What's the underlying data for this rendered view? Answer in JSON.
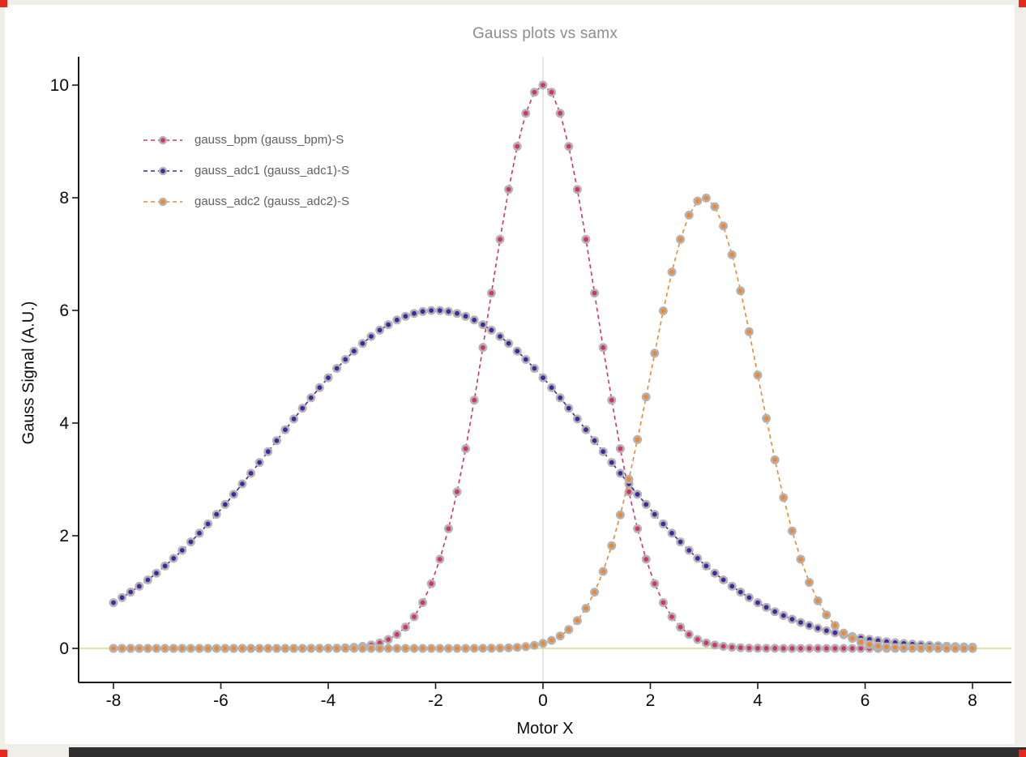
{
  "window": {
    "background": "#efeee8",
    "canvas": "#ffffff",
    "bottom_bar_color": "#2f2f2f",
    "corner_marker_color": "#e8281e"
  },
  "chart_data": {
    "type": "line",
    "title": "Gauss plots vs samx",
    "xlabel": "Motor X",
    "ylabel": "Gauss Signal (A.U.)",
    "x_ticks": [
      -8,
      -6,
      -4,
      -2,
      0,
      2,
      4,
      6,
      8
    ],
    "y_ticks": [
      0,
      2,
      4,
      6,
      8,
      10
    ],
    "xlim": [
      -8.65,
      8.75
    ],
    "ylim": [
      -0.6,
      10.55
    ],
    "grid": false,
    "legend_position": "top-left",
    "line_style": "dashed",
    "marker": "circle-gray-ring",
    "marker_ring_color": "#b3b3b3",
    "title_color": "#8d8d8d",
    "axis_color": "#1a1a1a",
    "reference_lines": [
      {
        "orientation": "vertical",
        "x": 0,
        "color": "#cfcfcf"
      },
      {
        "orientation": "horizontal",
        "y": 0,
        "color": "#d9d98c"
      }
    ],
    "x_sampled": [
      -8,
      -7.5,
      -7,
      -6.5,
      -6,
      -5.5,
      -5,
      -4.5,
      -4,
      -3.5,
      -3,
      -2.5,
      -2,
      -1.5,
      -1,
      -0.5,
      0,
      0.5,
      1,
      1.5,
      2,
      2.5,
      3,
      3.5,
      4,
      4.5,
      5,
      5.5,
      6,
      6.5,
      7,
      7.5,
      8
    ],
    "series": [
      {
        "name": "gauss_bpm (gauss_bpm)-S",
        "color": "#d23369",
        "gaussian": {
          "amplitude": 10,
          "center": 0,
          "sigma": 1
        },
        "x_start": -8,
        "x_end": 8,
        "n_points": 101,
        "y_sampled": [
          0,
          0,
          0,
          0,
          0,
          0,
          0,
          0,
          0.003,
          0.022,
          0.111,
          0.439,
          1.353,
          3.247,
          6.065,
          8.825,
          10,
          8.825,
          6.065,
          3.247,
          1.353,
          0.439,
          0.111,
          0.022,
          0.003,
          0,
          0,
          0,
          0,
          0,
          0,
          0,
          0
        ]
      },
      {
        "name": "gauss_adc1 (gauss_adc1)-S",
        "color": "#43279e",
        "gaussian": {
          "amplitude": 6,
          "center": -2,
          "sigma": 3
        },
        "x_start": -8,
        "x_end": 8,
        "n_points": 101,
        "y_sampled": [
          0.812,
          1.118,
          1.497,
          1.948,
          2.467,
          3.038,
          3.639,
          4.24,
          4.804,
          5.295,
          5.676,
          5.917,
          6,
          5.917,
          5.676,
          5.295,
          4.804,
          4.24,
          3.639,
          3.038,
          2.467,
          1.948,
          1.497,
          1.118,
          0.812,
          0.574,
          0.394,
          0.264,
          0.171,
          0.108,
          0.067,
          0.04,
          0.023
        ]
      },
      {
        "name": "gauss_adc2 (gauss_adc2)-S",
        "color": "#ee8833",
        "gaussian": {
          "amplitude": 8,
          "center": 3,
          "sigma": 1
        },
        "x_start": -8,
        "x_end": 8,
        "n_points": 101,
        "y_sampled": [
          0,
          0,
          0,
          0,
          0,
          0,
          0,
          0,
          0,
          0,
          0,
          0,
          0,
          0,
          0.003,
          0.018,
          0.089,
          0.351,
          1.083,
          2.597,
          4.852,
          7.06,
          8,
          7.06,
          4.852,
          2.597,
          1.083,
          0.351,
          0.09,
          0.018,
          0.003,
          0,
          0
        ]
      }
    ]
  }
}
